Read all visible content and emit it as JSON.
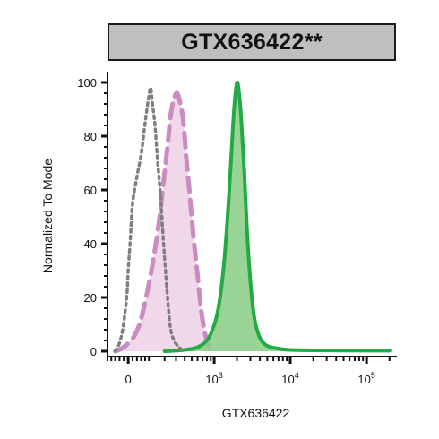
{
  "chart_data": {
    "type": "area",
    "title": "GTX636422**",
    "xlabel": "GTX636422",
    "ylabel": "Normalized To Mode",
    "ylim": [
      0,
      100
    ],
    "y_ticks": [
      0,
      20,
      40,
      60,
      80,
      100
    ],
    "x_scale": "biexponential",
    "x_ticks": [
      {
        "value": 0,
        "label": "0",
        "sup": ""
      },
      {
        "value": 1000,
        "label": "10",
        "sup": "3"
      },
      {
        "value": 10000,
        "label": "10",
        "sup": "4"
      },
      {
        "value": 100000,
        "label": "10",
        "sup": "5"
      }
    ],
    "grid": false,
    "series": [
      {
        "style": "dotted",
        "color": "#7f7f7f",
        "fill": "none",
        "x": [
          -60,
          -40,
          -25,
          -15,
          -5,
          0,
          10,
          20,
          40,
          60,
          80,
          100,
          110,
          120,
          135,
          150,
          170,
          190,
          210,
          230,
          250,
          280,
          320,
          380
        ],
        "y": [
          0,
          3,
          8,
          14,
          22,
          30,
          42,
          55,
          65,
          73,
          85,
          95,
          98,
          92,
          84,
          72,
          58,
          42,
          28,
          16,
          8,
          4,
          2,
          0
        ]
      },
      {
        "style": "dashed",
        "color": "#c98bc0",
        "fill": "#efd3e8",
        "x": [
          -60,
          -30,
          0,
          30,
          60,
          100,
          130,
          160,
          190,
          220,
          250,
          280,
          310,
          340,
          380,
          420,
          470,
          530,
          600,
          680,
          780,
          900
        ],
        "y": [
          0,
          1,
          3,
          6,
          12,
          25,
          36,
          48,
          62,
          75,
          88,
          94,
          96,
          93,
          86,
          72,
          58,
          42,
          28,
          14,
          5,
          0
        ]
      },
      {
        "style": "solid",
        "color": "#22aa44",
        "fill": "#8ece8a",
        "x": [
          200,
          400,
          600,
          800,
          950,
          1100,
          1250,
          1400,
          1550,
          1700,
          1850,
          2000,
          2150,
          2300,
          2500,
          2700,
          3000,
          3400,
          4000,
          5000,
          7000,
          10000,
          30000,
          100000,
          200000
        ],
        "y": [
          0,
          0.5,
          1.5,
          4,
          8,
          14,
          24,
          38,
          56,
          75,
          92,
          100,
          95,
          84,
          66,
          46,
          26,
          12,
          5,
          2,
          1,
          0.5,
          0.3,
          0.2,
          0.2
        ]
      }
    ]
  }
}
